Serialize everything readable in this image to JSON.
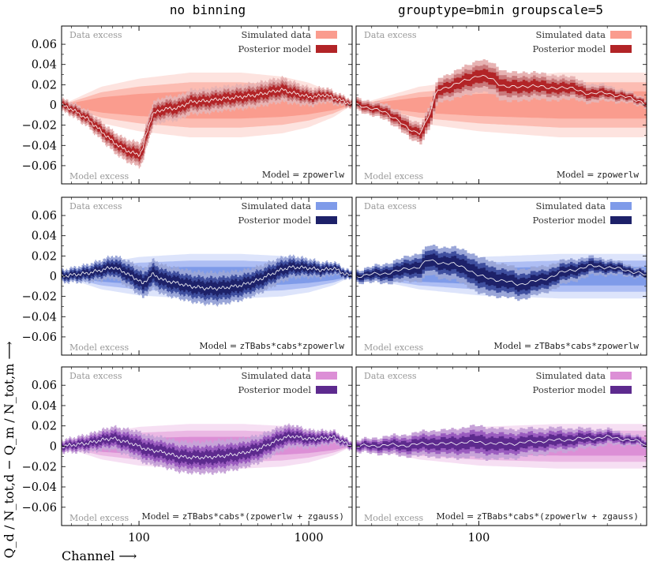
{
  "chart_data": {
    "type": "area",
    "columns": [
      "no binning",
      "grouptype=bmin groupscale=5"
    ],
    "xlabel": "Channel ⟶",
    "ylabel": "Q_d / N_tot,d − Q_m / N_tot,m ⟶",
    "ylim": [
      -0.078,
      0.078
    ],
    "yticks": [
      -0.06,
      -0.04,
      -0.02,
      0,
      0.02,
      0.04,
      0.06
    ],
    "ytick_labels": [
      "−0.06",
      "−0.04",
      "−0.02",
      "0",
      "0.02",
      "0.04",
      "0.06"
    ],
    "xscale": "log",
    "xlim_left": [
      35,
      1800
    ],
    "xticks_left": [
      100,
      1000
    ],
    "xlim_right": [
      35,
      420
    ],
    "xticks_right": [
      100
    ],
    "xtick_labels": {
      "100": "100",
      "1000": "1000"
    },
    "corner_labels": {
      "top": "Data excess",
      "bottom": "Model excess"
    },
    "legend": [
      "Simulated data",
      "Posterior model"
    ],
    "rows": [
      {
        "model_prefix": "Model = ",
        "model_name": "zpowerlw",
        "colors": {
          "sim_outer": "#fde3df",
          "sim_mid": "#fcbcb2",
          "sim_inner": "#fa9c8e",
          "post_outer": "#e7b3b3",
          "post_mid": "#c9787a",
          "post_inner": "#b22427",
          "median": "#ffffff"
        },
        "sim_width": {
          "x": [
            35,
            60,
            100,
            200,
            400,
            700,
            1000,
            1400,
            1800
          ],
          "y": [
            0,
            0.018,
            0.026,
            0.032,
            0.032,
            0.028,
            0.022,
            0.012,
            0
          ]
        },
        "panels": [
          {
            "median": {
              "x": [
                35,
                40,
                50,
                60,
                70,
                80,
                90,
                100,
                105,
                110,
                120,
                140,
                170,
                200,
                250,
                300,
                350,
                400,
                500,
                600,
                700,
                800,
                900,
                1000,
                1100,
                1200,
                1300,
                1400,
                1500,
                1600,
                1700,
                1800
              ],
              "y": [
                0,
                -0.004,
                -0.014,
                -0.026,
                -0.036,
                -0.043,
                -0.047,
                -0.049,
                -0.044,
                -0.03,
                -0.009,
                -0.004,
                -0.003,
                0.003,
                0.004,
                0.006,
                0.007,
                0.008,
                0.01,
                0.013,
                0.015,
                0.012,
                0.01,
                0.008,
                0.008,
                0.01,
                0.009,
                0.007,
                0.005,
                0.004,
                0.002,
                0.0
              ]
            },
            "band": {
              "x": [
                35,
                100,
                300,
                700,
                1800
              ],
              "y": [
                0.003,
                0.006,
                0.006,
                0.006,
                0.002
              ]
            }
          },
          {
            "median": {
              "x": [
                35,
                40,
                45,
                50,
                55,
                60,
                65,
                70,
                80,
                90,
                100,
                110,
                120,
                140,
                160,
                180,
                200,
                230,
                260,
                300,
                330,
                360,
                400,
                420
              ],
              "y": [
                0,
                -0.003,
                -0.008,
                -0.014,
                -0.025,
                -0.028,
                -0.012,
                0.014,
                0.02,
                0.024,
                0.03,
                0.026,
                0.02,
                0.017,
                0.02,
                0.016,
                0.018,
                0.015,
                0.011,
                0.012,
                0.009,
                0.007,
                0.004,
                0.0
              ]
            },
            "band": {
              "x": [
                35,
                60,
                100,
                200,
                420
              ],
              "y": [
                0.003,
                0.005,
                0.008,
                0.006,
                0.002
              ]
            }
          }
        ]
      },
      {
        "model_prefix": "Model = ",
        "model_name": "zTBabs*cabs*zpowerlw",
        "colors": {
          "sim_outer": "#dde4fb",
          "sim_mid": "#aebef4",
          "sim_inner": "#7f9be9",
          "post_outer": "#9aa6d8",
          "post_mid": "#3f4f9f",
          "post_inner": "#1d2169",
          "median": "#ffffff"
        },
        "sim_width": {
          "x": [
            35,
            60,
            100,
            200,
            400,
            700,
            1000,
            1400,
            1800
          ],
          "y": [
            0,
            0.013,
            0.019,
            0.022,
            0.022,
            0.02,
            0.016,
            0.009,
            0
          ]
        },
        "panels": [
          {
            "median": {
              "x": [
                35,
                50,
                60,
                70,
                80,
                90,
                100,
                105,
                110,
                120,
                140,
                170,
                200,
                250,
                300,
                400,
                500,
                600,
                700,
                800,
                1000,
                1200,
                1400,
                1600,
                1800
              ],
              "y": [
                0,
                0.003,
                0.006,
                0.009,
                0.005,
                0.0,
                -0.004,
                -0.008,
                -0.004,
                0.002,
                -0.004,
                -0.007,
                -0.01,
                -0.012,
                -0.012,
                -0.009,
                -0.004,
                0.002,
                0.007,
                0.009,
                0.008,
                0.006,
                0.008,
                0.003,
                0.0
              ]
            },
            "band": {
              "x": [
                35,
                100,
                300,
                700,
                1800
              ],
              "y": [
                0.003,
                0.007,
                0.008,
                0.006,
                0.002
              ]
            }
          },
          {
            "median": {
              "x": [
                35,
                45,
                50,
                55,
                60,
                65,
                70,
                80,
                90,
                100,
                120,
                140,
                170,
                200,
                230,
                260,
                300,
                350,
                400,
                420
              ],
              "y": [
                0,
                0.003,
                0.005,
                0.008,
                0.009,
                0.016,
                0.014,
                0.012,
                0.008,
                0.0,
                -0.004,
                -0.008,
                -0.004,
                0.003,
                0.007,
                0.01,
                0.009,
                0.006,
                0.003,
                0.0
              ]
            },
            "band": {
              "x": [
                35,
                60,
                100,
                200,
                420
              ],
              "y": [
                0.003,
                0.007,
                0.009,
                0.006,
                0.002
              ]
            }
          }
        ]
      },
      {
        "model_prefix": "Model = ",
        "model_name": "zTBabs*cabs*(zpowerlw + zgauss)",
        "colors": {
          "sim_outer": "#f6dff3",
          "sim_mid": "#ebb8e4",
          "sim_inner": "#dc8fd6",
          "post_outer": "#c7a3d8",
          "post_mid": "#9a5cbf",
          "post_inner": "#5d2a8e",
          "median": "#ffffff"
        },
        "sim_width": {
          "x": [
            35,
            60,
            100,
            200,
            400,
            700,
            1000,
            1400,
            1800
          ],
          "y": [
            0,
            0.013,
            0.019,
            0.022,
            0.022,
            0.02,
            0.016,
            0.009,
            0
          ]
        },
        "panels": [
          {
            "median": {
              "x": [
                35,
                50,
                60,
                70,
                80,
                90,
                100,
                110,
                120,
                140,
                170,
                200,
                250,
                300,
                400,
                500,
                600,
                700,
                800,
                1000,
                1200,
                1400,
                1600,
                1800
              ],
              "y": [
                0,
                0.003,
                0.006,
                0.008,
                0.005,
                0.003,
                0.0,
                -0.003,
                -0.004,
                -0.006,
                -0.01,
                -0.011,
                -0.011,
                -0.01,
                -0.007,
                -0.003,
                0.003,
                0.008,
                0.01,
                0.007,
                0.008,
                0.009,
                0.004,
                0.0
              ]
            },
            "band": {
              "x": [
                35,
                100,
                300,
                700,
                1800
              ],
              "y": [
                0.003,
                0.007,
                0.008,
                0.006,
                0.002
              ]
            }
          },
          {
            "median": {
              "x": [
                35,
                45,
                55,
                65,
                75,
                90,
                100,
                120,
                140,
                170,
                200,
                230,
                260,
                300,
                350,
                400,
                420
              ],
              "y": [
                0,
                0.001,
                0.001,
                0.003,
                0.002,
                0.004,
                0.004,
                0.002,
                0.003,
                0.005,
                0.006,
                0.007,
                0.008,
                0.009,
                0.007,
                0.004,
                0.0
              ]
            },
            "band": {
              "x": [
                35,
                60,
                100,
                200,
                420
              ],
              "y": [
                0.003,
                0.006,
                0.008,
                0.006,
                0.002
              ]
            }
          }
        ]
      }
    ]
  }
}
